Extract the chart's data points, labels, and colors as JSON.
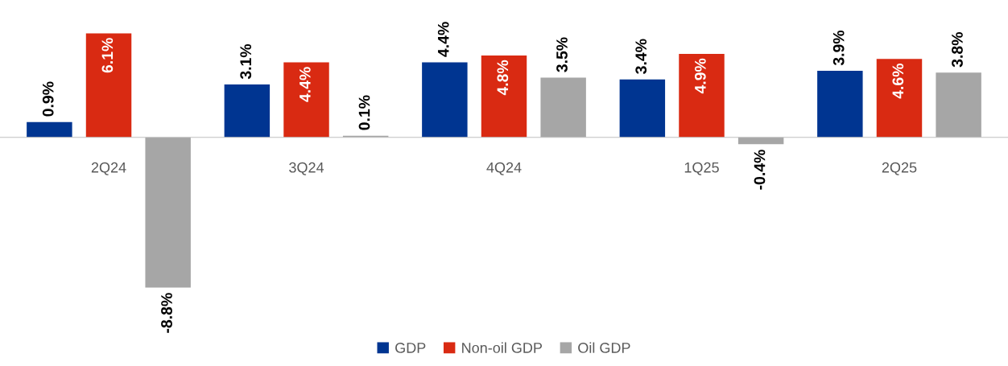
{
  "chart_data": {
    "type": "bar",
    "categories": [
      "2Q24",
      "3Q24",
      "4Q24",
      "1Q25",
      "2Q25"
    ],
    "series": [
      {
        "name": "GDP",
        "color": "#003591",
        "values": [
          0.9,
          3.1,
          4.4,
          3.4,
          3.9
        ],
        "value_labels": [
          "0.9%",
          "3.1%",
          "4.4%",
          "3.4%",
          "3.9%"
        ]
      },
      {
        "name": "Non-oil GDP",
        "color": "#d92a12",
        "values": [
          6.1,
          4.4,
          4.8,
          4.9,
          4.6
        ],
        "value_labels": [
          "6.1%",
          "4.4%",
          "4.8%",
          "4.9%",
          "4.6%"
        ]
      },
      {
        "name": "Oil GDP",
        "color": "#a6a6a6",
        "values": [
          -8.8,
          0.1,
          3.5,
          -0.4,
          3.8
        ],
        "value_labels": [
          "-8.8%",
          "0.1%",
          "3.5%",
          "-0.4%",
          "3.8%"
        ]
      }
    ],
    "legend": "bottom",
    "grid": false
  }
}
